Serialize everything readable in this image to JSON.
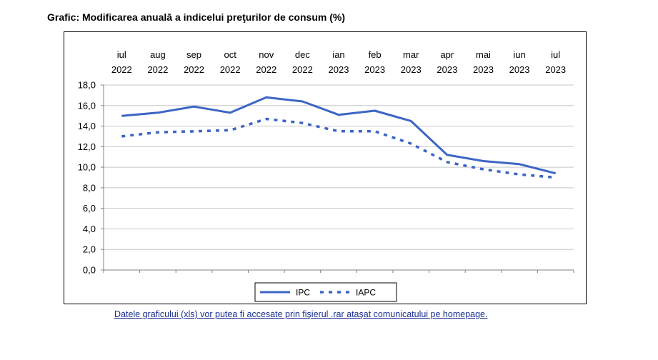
{
  "title": "Grafic: Modificarea anuală a indicelui preţurilor de consum (%)",
  "footer_link": "Datele graficului (xls) vor putea fi accesate prin fişierul .rar  ataşat comunicatului pe homepage.",
  "colors": {
    "series": "#3d65c4",
    "axis": "#808080",
    "grid": "#c8c8c8",
    "link": "#1a2f8f"
  },
  "chart_data": {
    "type": "line",
    "title": "Grafic: Modificarea anuală a indicelui preţurilor de consum (%)",
    "xlabel": "",
    "ylabel": "",
    "x_position": "top",
    "categories": [
      [
        "iul",
        "2022"
      ],
      [
        "aug",
        "2022"
      ],
      [
        "sep",
        "2022"
      ],
      [
        "oct",
        "2022"
      ],
      [
        "nov",
        "2022"
      ],
      [
        "dec",
        "2022"
      ],
      [
        "ian",
        "2023"
      ],
      [
        "feb",
        "2023"
      ],
      [
        "mar",
        "2023"
      ],
      [
        "apr",
        "2023"
      ],
      [
        "mai",
        "2023"
      ],
      [
        "iun",
        "2023"
      ],
      [
        "iul",
        "2023"
      ]
    ],
    "ylim": [
      0,
      18
    ],
    "yticks": [
      0,
      2,
      4,
      6,
      8,
      10,
      12,
      14,
      16,
      18
    ],
    "ytick_labels": [
      "0,0",
      "2,0",
      "4,0",
      "6,0",
      "8,0",
      "10,0",
      "12,0",
      "14,0",
      "16,0",
      "18,0"
    ],
    "grid": true,
    "legend_position": "bottom-center",
    "series": [
      {
        "name": "IPC",
        "style": "solid",
        "values": [
          15.0,
          15.3,
          15.9,
          15.3,
          16.8,
          16.4,
          15.1,
          15.5,
          14.5,
          11.2,
          10.6,
          10.3,
          9.4
        ]
      },
      {
        "name": "IAPC",
        "style": "dotted",
        "values": [
          13.0,
          13.4,
          13.5,
          13.6,
          14.7,
          14.3,
          13.5,
          13.5,
          12.3,
          10.5,
          9.8,
          9.3,
          9.0
        ]
      }
    ]
  }
}
